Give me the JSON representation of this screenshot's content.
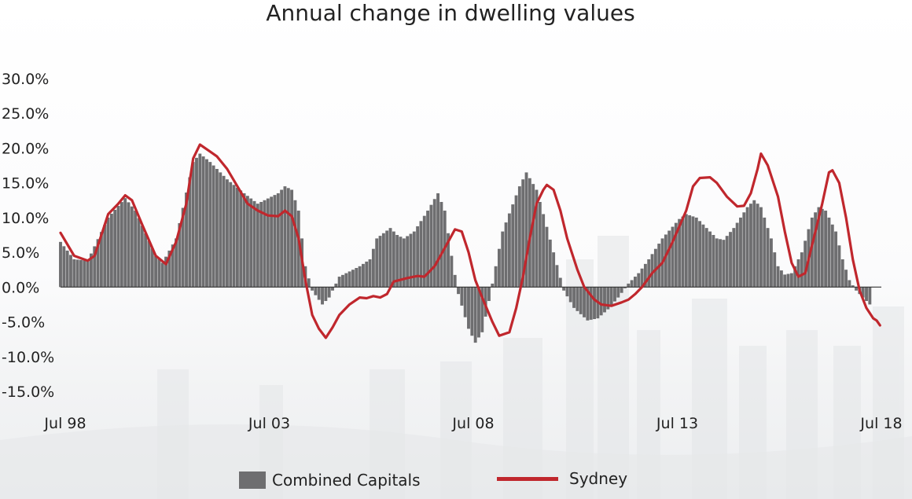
{
  "colors": {
    "bar": "#6e6e70",
    "line": "#c0272d",
    "axis": "#333333"
  },
  "chart_data": {
    "type": "bar",
    "title": "Annual change in dwelling values",
    "xlabel": "",
    "ylabel": "",
    "ylim": [
      -15,
      30
    ],
    "yticks": [
      "30.0%",
      "25.0%",
      "20.0%",
      "15.0%",
      "10.0%",
      "5.0%",
      "0.0%",
      "-5.0%",
      "-10.0%",
      "-15.0%"
    ],
    "ytick_values": [
      30,
      25,
      20,
      15,
      10,
      5,
      0,
      -5,
      -10,
      -15
    ],
    "xticks": [
      "Jul 98",
      "Jul 03",
      "Jul 08",
      "Jul 13",
      "Jul 18"
    ],
    "xtick_values": [
      0,
      60,
      120,
      180,
      240
    ],
    "x_unit": "months since Jul 98",
    "grid": false,
    "legend": "bottom",
    "series": [
      {
        "name": "Combined Capitals",
        "kind": "bar",
        "keypoints": [
          [
            0,
            6.5
          ],
          [
            4,
            4.0
          ],
          [
            8,
            3.8
          ],
          [
            14,
            10.0
          ],
          [
            19,
            12.8
          ],
          [
            22,
            11.0
          ],
          [
            28,
            4.5
          ],
          [
            30,
            3.5
          ],
          [
            34,
            7.0
          ],
          [
            39,
            18.0
          ],
          [
            41,
            19.2
          ],
          [
            44,
            18.0
          ],
          [
            49,
            15.5
          ],
          [
            54,
            13.5
          ],
          [
            58,
            12.0
          ],
          [
            64,
            13.5
          ],
          [
            66,
            14.5
          ],
          [
            68,
            14.0
          ],
          [
            70,
            11.0
          ],
          [
            72,
            3.0
          ],
          [
            74,
            -0.5
          ],
          [
            77,
            -2.5
          ],
          [
            79,
            -1.5
          ],
          [
            82,
            1.5
          ],
          [
            88,
            3.0
          ],
          [
            91,
            4.0
          ],
          [
            93,
            7.0
          ],
          [
            97,
            8.5
          ],
          [
            99,
            7.5
          ],
          [
            101,
            7.0
          ],
          [
            104,
            8.0
          ],
          [
            108,
            11.0
          ],
          [
            111,
            13.5
          ],
          [
            113,
            11.0
          ],
          [
            115,
            4.5
          ],
          [
            117,
            -1.0
          ],
          [
            120,
            -6.0
          ],
          [
            122,
            -8.0
          ],
          [
            124,
            -6.5
          ],
          [
            126,
            -2.0
          ],
          [
            128,
            3.0
          ],
          [
            130,
            8.0
          ],
          [
            135,
            14.5
          ],
          [
            137,
            16.5
          ],
          [
            140,
            14.0
          ],
          [
            142,
            10.5
          ],
          [
            145,
            5.0
          ],
          [
            148,
            -0.5
          ],
          [
            151,
            -3.0
          ],
          [
            155,
            -4.8
          ],
          [
            158,
            -4.5
          ],
          [
            161,
            -3.2
          ],
          [
            164,
            -1.5
          ],
          [
            167,
            0.5
          ],
          [
            170,
            2.0
          ],
          [
            173,
            4.0
          ],
          [
            177,
            7.0
          ],
          [
            182,
            9.8
          ],
          [
            184,
            10.5
          ],
          [
            187,
            10.0
          ],
          [
            190,
            8.5
          ],
          [
            193,
            7.0
          ],
          [
            195,
            6.8
          ],
          [
            198,
            8.5
          ],
          [
            202,
            11.5
          ],
          [
            204,
            12.5
          ],
          [
            206,
            11.5
          ],
          [
            209,
            7.0
          ],
          [
            211,
            3.0
          ],
          [
            213,
            1.8
          ],
          [
            215,
            2.0
          ],
          [
            218,
            5.0
          ],
          [
            221,
            10.0
          ],
          [
            223,
            11.5
          ],
          [
            225,
            11.0
          ],
          [
            228,
            8.0
          ],
          [
            230,
            4.0
          ],
          [
            232,
            1.0
          ],
          [
            234,
            -0.5
          ],
          [
            236,
            -1.5
          ],
          [
            238,
            -2.5
          ]
        ]
      },
      {
        "name": "Sydney",
        "kind": "line",
        "keypoints": [
          [
            0,
            7.8
          ],
          [
            4,
            4.5
          ],
          [
            8,
            3.8
          ],
          [
            10,
            4.5
          ],
          [
            14,
            10.5
          ],
          [
            17,
            12.0
          ],
          [
            19,
            13.2
          ],
          [
            21,
            12.5
          ],
          [
            24,
            9.0
          ],
          [
            28,
            4.5
          ],
          [
            31,
            3.3
          ],
          [
            34,
            6.5
          ],
          [
            37,
            12.0
          ],
          [
            39,
            18.5
          ],
          [
            41,
            20.5
          ],
          [
            44,
            19.5
          ],
          [
            46,
            18.8
          ],
          [
            49,
            17.0
          ],
          [
            52,
            14.5
          ],
          [
            55,
            12.0
          ],
          [
            58,
            11.0
          ],
          [
            61,
            10.3
          ],
          [
            64,
            10.2
          ],
          [
            66,
            11.0
          ],
          [
            68,
            10.2
          ],
          [
            70,
            7.0
          ],
          [
            72,
            1.0
          ],
          [
            74,
            -4.0
          ],
          [
            76,
            -6.0
          ],
          [
            78,
            -7.3
          ],
          [
            80,
            -5.8
          ],
          [
            82,
            -4.0
          ],
          [
            85,
            -2.5
          ],
          [
            88,
            -1.5
          ],
          [
            90,
            -1.6
          ],
          [
            92,
            -1.3
          ],
          [
            94,
            -1.5
          ],
          [
            96,
            -1.0
          ],
          [
            98,
            0.8
          ],
          [
            102,
            1.3
          ],
          [
            105,
            1.6
          ],
          [
            107,
            1.5
          ],
          [
            110,
            3.0
          ],
          [
            114,
            6.5
          ],
          [
            116,
            8.3
          ],
          [
            118,
            8.0
          ],
          [
            120,
            5.0
          ],
          [
            122,
            1.0
          ],
          [
            124,
            -1.5
          ],
          [
            127,
            -5.0
          ],
          [
            129,
            -7.0
          ],
          [
            132,
            -6.5
          ],
          [
            134,
            -3.0
          ],
          [
            136,
            1.5
          ],
          [
            138,
            7.0
          ],
          [
            140,
            12.0
          ],
          [
            142,
            14.0
          ],
          [
            143,
            14.7
          ],
          [
            145,
            14.0
          ],
          [
            147,
            11.0
          ],
          [
            149,
            7.0
          ],
          [
            152,
            2.5
          ],
          [
            154,
            0.0
          ],
          [
            157,
            -1.8
          ],
          [
            159,
            -2.5
          ],
          [
            162,
            -2.7
          ],
          [
            165,
            -2.2
          ],
          [
            167,
            -1.8
          ],
          [
            169,
            -1.0
          ],
          [
            171,
            0.0
          ],
          [
            174,
            2.0
          ],
          [
            177,
            3.5
          ],
          [
            180,
            6.5
          ],
          [
            184,
            11.0
          ],
          [
            186,
            14.5
          ],
          [
            188,
            15.7
          ],
          [
            191,
            15.8
          ],
          [
            193,
            15.0
          ],
          [
            196,
            13.0
          ],
          [
            199,
            11.6
          ],
          [
            201,
            11.7
          ],
          [
            203,
            13.5
          ],
          [
            205,
            17.0
          ],
          [
            206,
            19.2
          ],
          [
            208,
            17.5
          ],
          [
            211,
            13.0
          ],
          [
            213,
            8.0
          ],
          [
            215,
            3.5
          ],
          [
            217,
            1.5
          ],
          [
            219,
            2.0
          ],
          [
            221,
            6.0
          ],
          [
            224,
            12.0
          ],
          [
            226,
            16.5
          ],
          [
            227,
            16.8
          ],
          [
            229,
            15.0
          ],
          [
            231,
            10.0
          ],
          [
            233,
            4.0
          ],
          [
            235,
            -0.5
          ],
          [
            237,
            -3.0
          ],
          [
            239,
            -4.5
          ],
          [
            240,
            -4.8
          ],
          [
            241,
            -5.5
          ]
        ]
      }
    ]
  }
}
